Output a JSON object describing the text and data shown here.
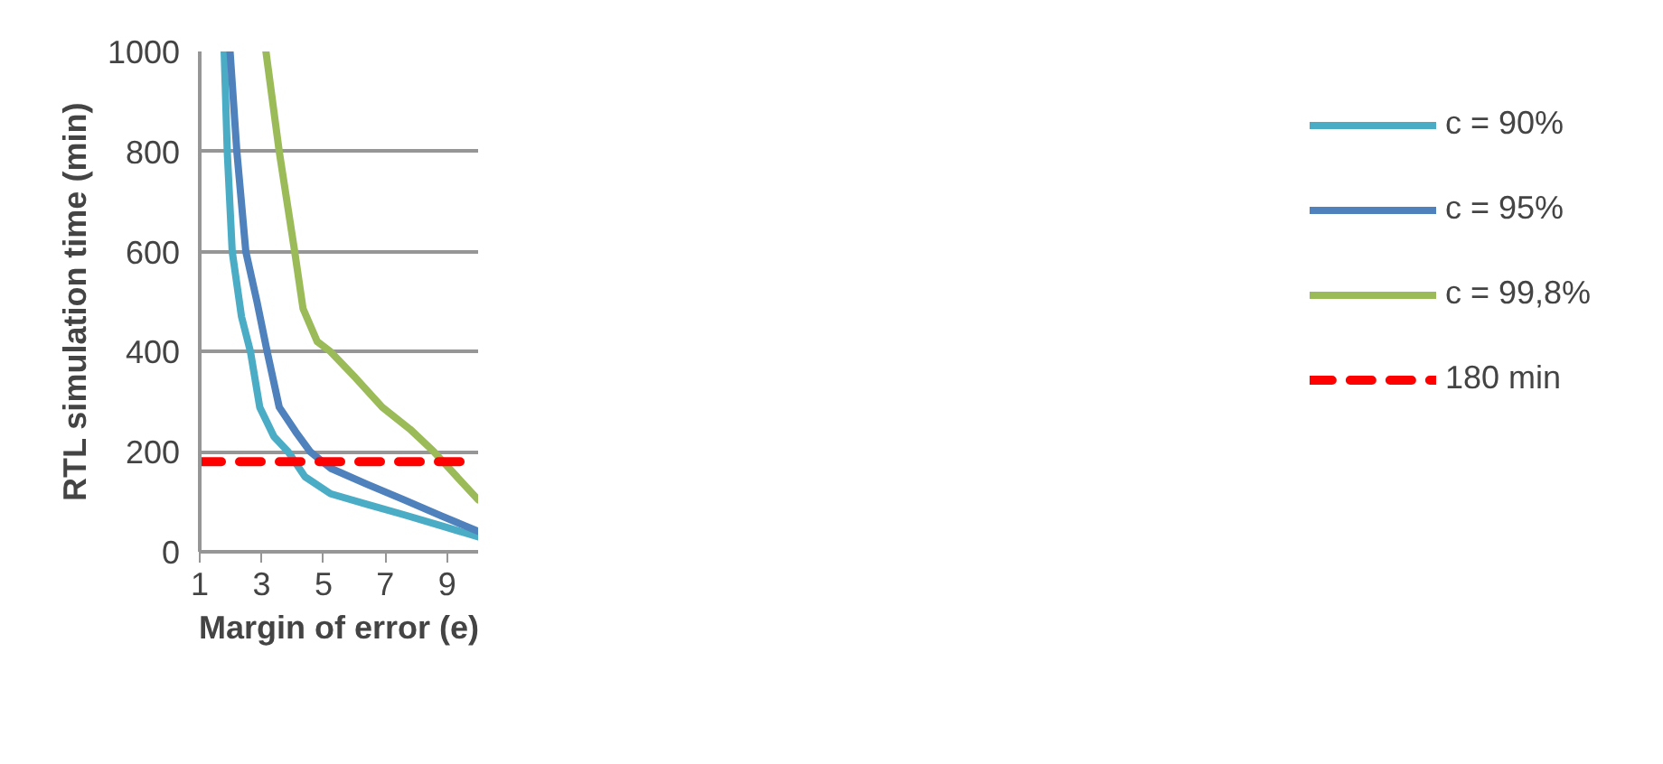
{
  "chart_data": {
    "type": "line",
    "xlabel": "Margin of error (e)",
    "ylabel": "RTL simulation time (min)",
    "xlim": [
      1,
      10
    ],
    "xticks": [
      1,
      3,
      5,
      7,
      9
    ],
    "ylim": [
      0,
      1000
    ],
    "yticks": [
      0,
      200,
      400,
      600,
      800,
      1000
    ],
    "grid": "y",
    "legend": "right",
    "line_style": "solid",
    "marker": "none",
    "series": [
      {
        "name": "c = 90%",
        "color": "#4bacc6",
        "x": [
          1.79,
          1.89,
          2.05,
          2.35,
          2.64,
          2.94,
          3.4,
          3.86,
          4.4,
          5.23,
          6.4,
          7.6,
          8.8,
          10.0
        ],
        "values": [
          1000,
          800,
          600,
          470,
          400,
          289,
          230,
          200,
          150,
          116,
          95,
          74,
          52,
          30
        ]
      },
      {
        "name": "c = 95%",
        "color": "#4f81bd",
        "x": [
          1.98,
          2.2,
          2.49,
          2.85,
          3.18,
          3.57,
          4.1,
          4.57,
          5.23,
          6.4,
          7.6,
          8.8,
          10.0
        ],
        "values": [
          1000,
          800,
          600,
          500,
          400,
          289,
          240,
          200,
          167,
          135,
          104,
          72,
          41
        ]
      },
      {
        "name": "c = 99,8%",
        "color": "#9bbb59",
        "x": [
          3.14,
          3.57,
          4.07,
          4.34,
          4.8,
          5.23,
          6.0,
          6.9,
          7.8,
          8.57,
          10.0
        ],
        "values": [
          1000,
          800,
          600,
          486,
          420,
          400,
          350,
          289,
          245,
          200,
          104
        ]
      },
      {
        "name": "180 min",
        "color": "#ff0000",
        "line_style": "dashed",
        "x": [
          1,
          10
        ],
        "values": [
          180,
          180
        ]
      }
    ]
  }
}
